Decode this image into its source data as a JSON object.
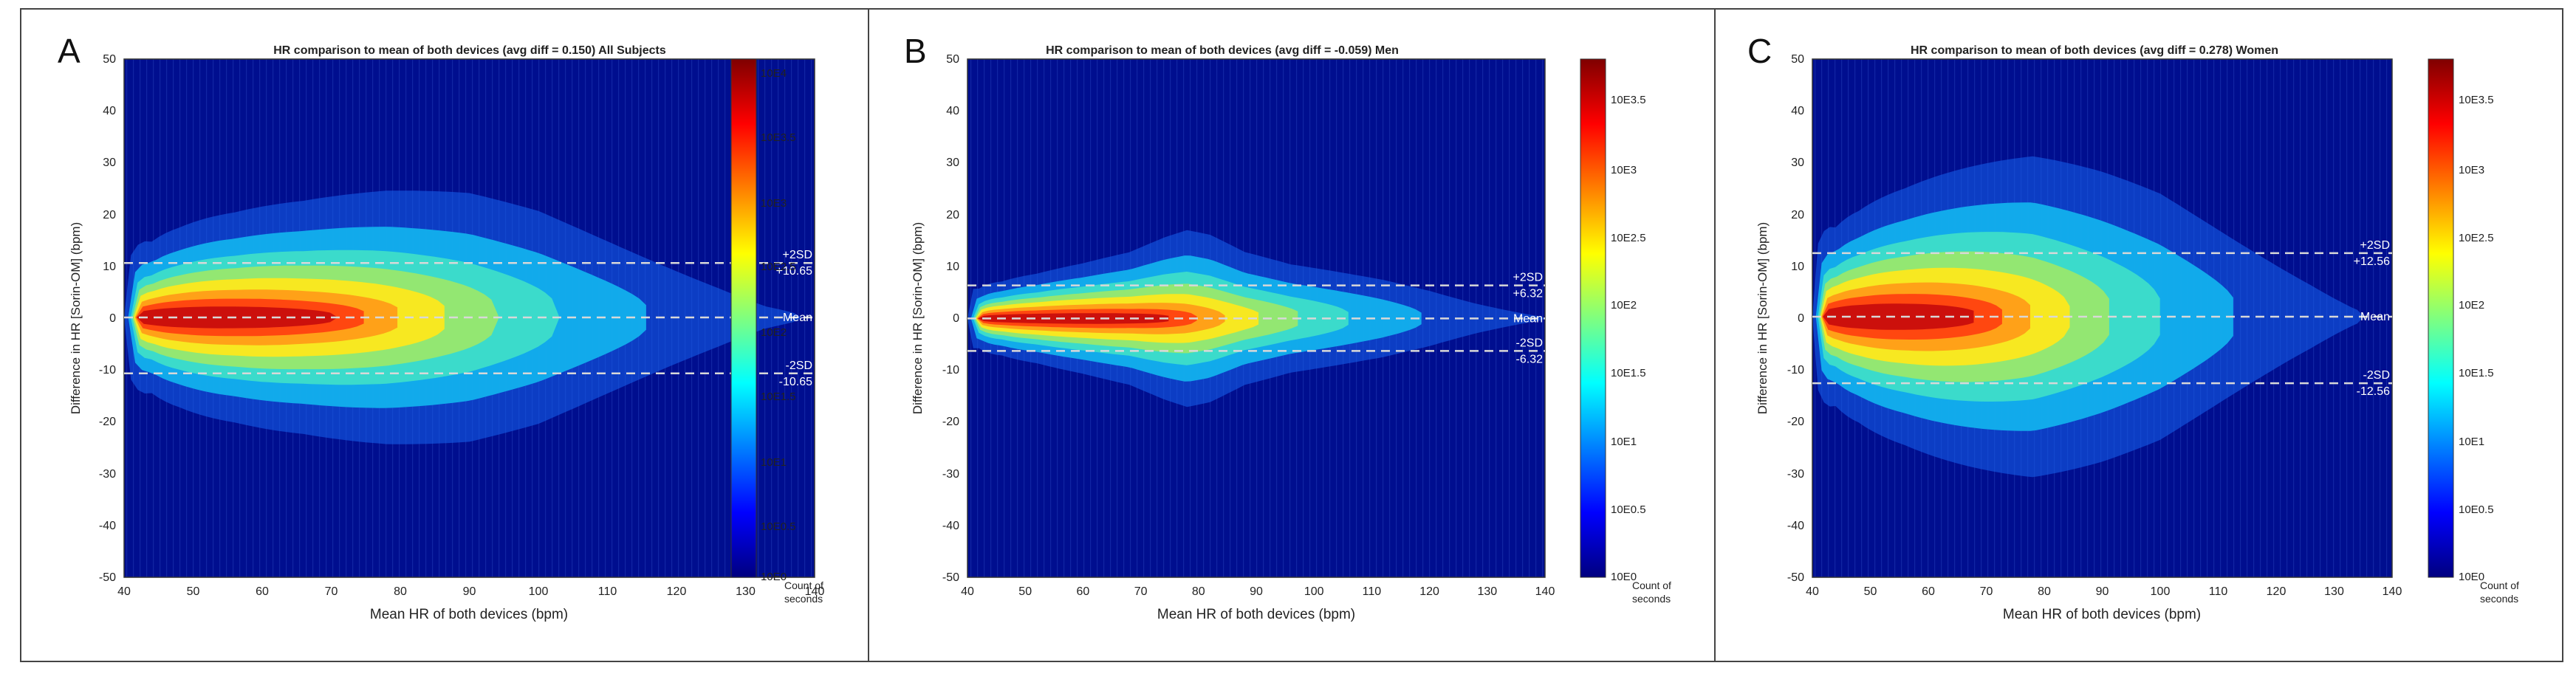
{
  "colorbar_colors": [
    "#00007f",
    "#0000ff",
    "#007fff",
    "#00ffff",
    "#7fff7f",
    "#ffff00",
    "#ff7f00",
    "#ff0000",
    "#7f0000"
  ],
  "plot_background": "#000e8f",
  "panels": [
    {
      "letter": "A",
      "title": "HR comparison to mean of both devices (avg diff = 0.150) All Subjects",
      "ylabel": "Difference in HR [Sorin-OM] (bpm)",
      "xlabel": "Mean HR of both devices (bpm)",
      "x_ticks": [
        "40",
        "50",
        "60",
        "70",
        "80",
        "90",
        "100",
        "110",
        "120",
        "130",
        "140"
      ],
      "y_ticks": [
        "50",
        "40",
        "30",
        "20",
        "10",
        "0",
        "-10",
        "-20",
        "-30",
        "-40",
        "-50"
      ],
      "colorbar_ticks": [
        "10E4",
        "10E3.5",
        "10E3",
        "10E2.5",
        "10E2",
        "10E1.5",
        "10E1",
        "10E0.5",
        "10E0"
      ],
      "colorbar_label_line1": "Count of",
      "colorbar_label_line2": "seconds",
      "upper_label_1": "+2SD",
      "upper_label_2": "+10.65",
      "mean_label": "Mean",
      "lower_label_1": "-2SD",
      "lower_label_2": "-10.65"
    },
    {
      "letter": "B",
      "title": "HR comparison to mean of both devices (avg diff = -0.059) Men",
      "ylabel": "Difference in HR [Sorin-OM] (bpm)",
      "xlabel": "Mean HR of both devices (bpm)",
      "x_ticks": [
        "40",
        "50",
        "60",
        "70",
        "80",
        "90",
        "100",
        "110",
        "120",
        "130",
        "140"
      ],
      "y_ticks": [
        "50",
        "40",
        "30",
        "20",
        "10",
        "0",
        "-10",
        "-20",
        "-30",
        "-40",
        "-50"
      ],
      "colorbar_ticks": [
        "10E3.5",
        "10E3",
        "10E2.5",
        "10E2",
        "10E1.5",
        "10E1",
        "10E0.5",
        "10E0"
      ],
      "colorbar_label_line1": "Count of",
      "colorbar_label_line2": "seconds",
      "upper_label_1": "+2SD",
      "upper_label_2": "+6.32",
      "mean_label": "Mean",
      "lower_label_1": "-2SD",
      "lower_label_2": "-6.32"
    },
    {
      "letter": "C",
      "title": "HR comparison to mean of both devices (avg diff = 0.278) Women",
      "ylabel": "Difference in HR [Sorin-OM] (bpm)",
      "xlabel": "Mean HR of both devices (bpm)",
      "x_ticks": [
        "40",
        "50",
        "60",
        "70",
        "80",
        "90",
        "100",
        "110",
        "120",
        "130",
        "140"
      ],
      "y_ticks": [
        "50",
        "40",
        "30",
        "20",
        "10",
        "0",
        "-10",
        "-20",
        "-30",
        "-40",
        "-50"
      ],
      "colorbar_ticks": [
        "10E3.5",
        "10E3",
        "10E2.5",
        "10E2",
        "10E1.5",
        "10E1",
        "10E0.5",
        "10E0"
      ],
      "colorbar_label_line1": "Count of",
      "colorbar_label_line2": "seconds",
      "upper_label_1": "+2SD",
      "upper_label_2": "+12.56",
      "mean_label": "Mean",
      "lower_label_1": "-2SD",
      "lower_label_2": "-12.56"
    }
  ],
  "chart_data": [
    {
      "type": "heatmap",
      "title": "HR comparison to mean of both devices (avg diff = 0.150) All Subjects",
      "xlabel": "Mean HR of both devices (bpm)",
      "ylabel": "Difference in HR [Sorin-OM] (bpm)",
      "xlim": [
        40,
        140
      ],
      "ylim": [
        -50,
        50
      ],
      "x_ticks": [
        40,
        50,
        60,
        70,
        80,
        90,
        100,
        110,
        120,
        130,
        140
      ],
      "y_ticks": [
        -50,
        -40,
        -30,
        -20,
        -10,
        0,
        10,
        20,
        30,
        40,
        50
      ],
      "colorbar_label": "Count of seconds",
      "colorbar_range_log10": [
        0,
        4
      ],
      "colorbar_ticks_log10": [
        0,
        0.5,
        1,
        1.5,
        2,
        2.5,
        3,
        3.5,
        4
      ],
      "mean_diff": 0.15,
      "upper_limit": 10.65,
      "lower_limit": -10.65,
      "density_peak_x": 65,
      "density_peak_log10": 3.9,
      "density_xmax": 128,
      "density_spread_y": 6
    },
    {
      "type": "heatmap",
      "title": "HR comparison to mean of both devices (avg diff = -0.059) Men",
      "xlabel": "Mean HR of both devices (bpm)",
      "ylabel": "Difference in HR [Sorin-OM] (bpm)",
      "xlim": [
        40,
        140
      ],
      "ylim": [
        -50,
        50
      ],
      "x_ticks": [
        40,
        50,
        60,
        70,
        80,
        90,
        100,
        110,
        120,
        130,
        140
      ],
      "y_ticks": [
        -50,
        -40,
        -30,
        -20,
        -10,
        0,
        10,
        20,
        30,
        40,
        50
      ],
      "colorbar_label": "Count of seconds",
      "colorbar_range_log10": [
        0,
        3.8
      ],
      "colorbar_ticks_log10": [
        0,
        0.5,
        1,
        1.5,
        2,
        2.5,
        3,
        3.5
      ],
      "mean_diff": -0.059,
      "upper_limit": 6.32,
      "lower_limit": -6.32,
      "density_peak_x": 70,
      "density_peak_log10": 3.0,
      "density_xmax": 135,
      "density_spread_y": 3.5
    },
    {
      "type": "heatmap",
      "title": "HR comparison to mean of both devices (avg diff = 0.278) Women",
      "xlabel": "Mean HR of both devices (bpm)",
      "ylabel": "Difference in HR [Sorin-OM] (bpm)",
      "xlim": [
        40,
        140
      ],
      "ylim": [
        -50,
        50
      ],
      "x_ticks": [
        40,
        50,
        60,
        70,
        80,
        90,
        100,
        110,
        120,
        130,
        140
      ],
      "y_ticks": [
        -50,
        -40,
        -30,
        -20,
        -10,
        0,
        10,
        20,
        30,
        40,
        50
      ],
      "colorbar_label": "Count of seconds",
      "colorbar_range_log10": [
        0,
        3.8
      ],
      "colorbar_ticks_log10": [
        0,
        0.5,
        1,
        1.5,
        2,
        2.5,
        3,
        3.5
      ],
      "mean_diff": 0.278,
      "upper_limit": 12.56,
      "lower_limit": -12.56,
      "density_peak_x": 63,
      "density_peak_log10": 3.8,
      "density_xmax": 125,
      "density_spread_y": 7
    }
  ]
}
